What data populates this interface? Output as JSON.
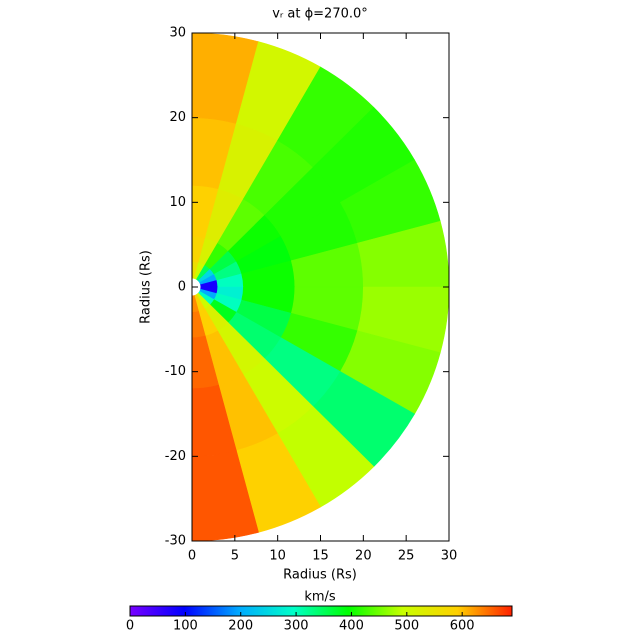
{
  "chart_data": {
    "type": "polar-field",
    "title": "vᵣ at ϕ=270.0°",
    "x_label": "Radius (Rs)",
    "y_label": "Radius (Rs)",
    "xlim": [
      0,
      30
    ],
    "xticks": [
      0,
      5,
      10,
      15,
      20,
      25,
      30
    ],
    "ylim": [
      -30,
      30
    ],
    "yticks": [
      -30,
      -20,
      -10,
      0,
      10,
      20,
      30
    ],
    "theta_edges": [
      90,
      75,
      60,
      45,
      30,
      15,
      0,
      -15,
      -30,
      -45,
      -60,
      -75,
      -90
    ],
    "r_edges": [
      1,
      3,
      6,
      12,
      20,
      30
    ],
    "values": [
      [
        560,
        580,
        590,
        600,
        610
      ],
      [
        500,
        520,
        530,
        520,
        510
      ],
      [
        350,
        420,
        440,
        430,
        420
      ],
      [
        250,
        360,
        400,
        410,
        410
      ],
      [
        200,
        330,
        390,
        410,
        420
      ],
      [
        80,
        300,
        400,
        440,
        460
      ],
      [
        80,
        280,
        400,
        440,
        470
      ],
      [
        200,
        300,
        360,
        420,
        460
      ],
      [
        300,
        380,
        340,
        330,
        340
      ],
      [
        500,
        520,
        510,
        500,
        490
      ],
      [
        580,
        590,
        600,
        600,
        590
      ],
      [
        630,
        640,
        650,
        660,
        660
      ]
    ],
    "colorbar_label": "km/s",
    "clim": [
      0,
      690
    ],
    "cticks": [
      0,
      100,
      200,
      300,
      400,
      500,
      600
    ],
    "colormap": [
      "#7800ff",
      "#0000ff",
      "#00aaff",
      "#00ffc8",
      "#00ff00",
      "#c8ff00",
      "#ffd000",
      "#ff2000"
    ]
  }
}
